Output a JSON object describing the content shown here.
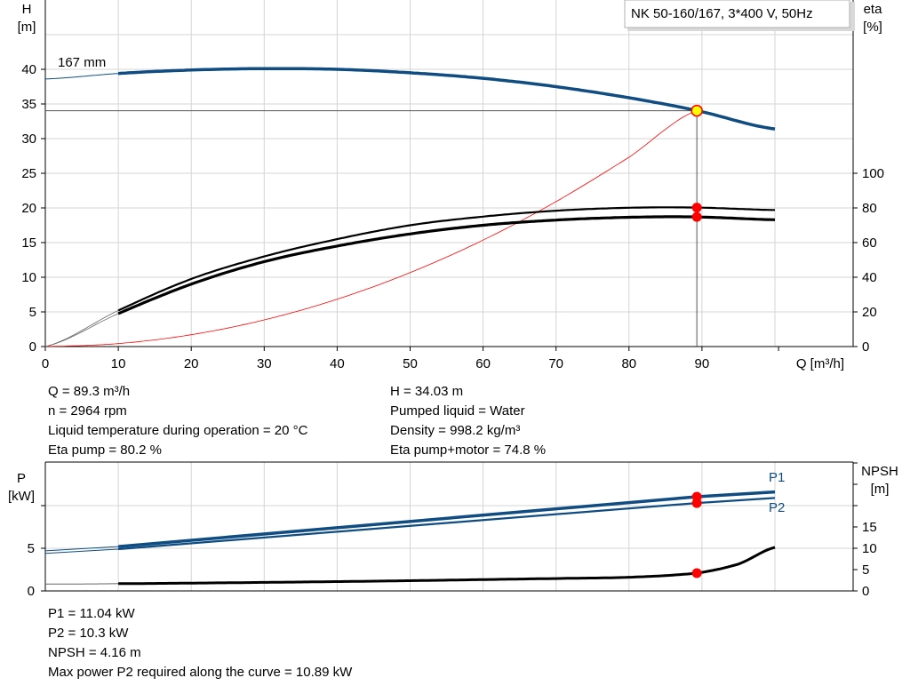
{
  "chart_data": [
    {
      "type": "line",
      "title": "NK 50-160/167, 3*400 V, 50Hz",
      "xlabel": "Q [m³/h]",
      "ylabel": "H\n[m]",
      "y2label": "eta\n[%]",
      "xlim": [
        0,
        110
      ],
      "ylim": [
        0,
        50
      ],
      "y2lim": [
        0,
        200
      ],
      "xticks": [
        0,
        10,
        20,
        30,
        40,
        50,
        60,
        70,
        80,
        90
      ],
      "yticks": [
        0,
        5,
        10,
        15,
        20,
        25,
        30,
        35,
        40
      ],
      "y2ticks": [
        0,
        20,
        40,
        60,
        80,
        100
      ],
      "grid": true,
      "curve_label": "167 mm",
      "series": [
        {
          "key": "H",
          "axis": "left",
          "color": "#0f4c81",
          "x": [
            0,
            10,
            20,
            30,
            40,
            50,
            60,
            70,
            80,
            89.3,
            100
          ],
          "y": [
            38.6,
            39.4,
            39.9,
            40.1,
            40.0,
            39.5,
            38.7,
            37.5,
            35.9,
            34.03,
            31.4
          ]
        },
        {
          "key": "eta_pump",
          "axis": "right",
          "color": "#000000",
          "x": [
            0,
            10,
            20,
            30,
            40,
            50,
            60,
            70,
            80,
            89.3,
            100
          ],
          "y": [
            0,
            20.8,
            39,
            52,
            62,
            70,
            75,
            78.4,
            80.1,
            80.2,
            78.8
          ]
        },
        {
          "key": "eta_pump_motor",
          "axis": "right",
          "color": "#000000",
          "x": [
            0,
            10,
            20,
            30,
            40,
            50,
            60,
            70,
            80,
            89.3,
            100
          ],
          "y": [
            0,
            19,
            36,
            49,
            58,
            65,
            70,
            73,
            74.6,
            74.8,
            73.2
          ]
        },
        {
          "key": "system_curve",
          "axis": "left",
          "color": "#ff0000",
          "x": [
            0,
            10,
            20,
            30,
            40,
            50,
            60,
            70,
            80,
            89.3
          ],
          "y": [
            0,
            0.43,
            1.71,
            3.84,
            6.83,
            10.67,
            15.36,
            20.91,
            27.31,
            34.03
          ]
        }
      ],
      "duty_point": {
        "Q": 89.3,
        "H": 34.03,
        "eta_pump": 80.2,
        "eta_pump_motor": 74.8
      }
    },
    {
      "type": "line",
      "ylabel": "P\n[kW]",
      "y2label": "NPSH\n[m]",
      "xlim": [
        0,
        110
      ],
      "ylim": [
        0,
        12.5
      ],
      "y2lim": [
        0,
        30
      ],
      "yticks": [
        0,
        5
      ],
      "y2ticks": [
        0,
        5,
        10,
        15
      ],
      "grid": true,
      "series": [
        {
          "name": "P1",
          "axis": "left",
          "color": "#0f4c81",
          "x": [
            0,
            10,
            89.3,
            100
          ],
          "y": [
            4.7,
            5.2,
            11.04,
            11.6
          ]
        },
        {
          "name": "P2",
          "axis": "left",
          "color": "#0f4c81",
          "x": [
            0,
            10,
            89.3,
            100
          ],
          "y": [
            4.4,
            4.9,
            10.3,
            10.9
          ]
        },
        {
          "key": "NPSH",
          "axis": "right",
          "color": "#000000",
          "x": [
            0,
            10,
            30,
            50,
            70,
            80,
            89.3,
            95,
            100
          ],
          "y": [
            1.6,
            1.7,
            2.0,
            2.4,
            2.9,
            3.2,
            4.16,
            6.3,
            10.2
          ]
        }
      ]
    }
  ],
  "info_top": {
    "left": [
      "Q = 89.3 m³/h",
      "n = 2964 rpm",
      "Liquid temperature during operation = 20 °C",
      "Eta pump = 80.2 %"
    ],
    "right": [
      "H = 34.03 m",
      "Pumped liquid = Water",
      "Density = 998.2 kg/m³",
      "Eta pump+motor = 74.8 %"
    ]
  },
  "info_bottom": [
    "P1 = 11.04 kW",
    "P2 = 10.3 kW",
    "NPSH = 4.16 m",
    "Max power P2 required along the curve = 10.89 kW"
  ]
}
